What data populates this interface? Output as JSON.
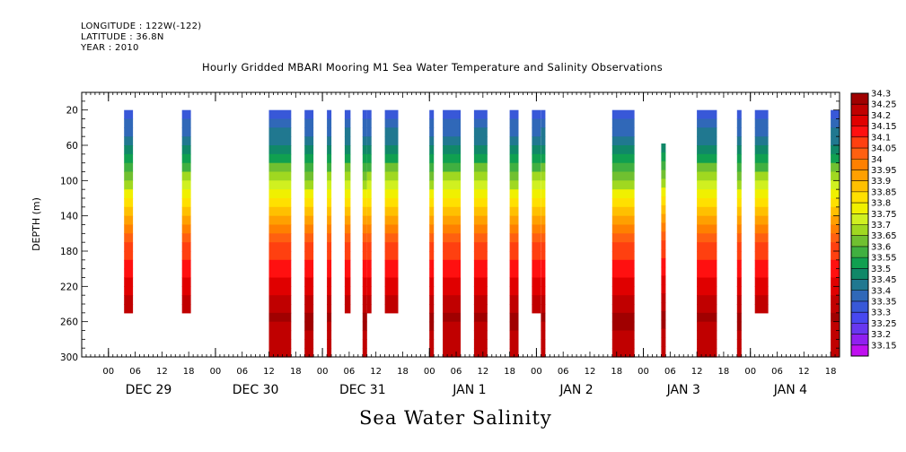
{
  "header": {
    "longitude": "LONGITUDE : 122W(-122)",
    "latitude": "LATITUDE : 36.8N",
    "year": "YEAR : 2010"
  },
  "chart_title": "Hourly Gridded MBARI Mooring M1 Sea Water Temperature and Salinity Observations",
  "variable_title": "Sea Water Salinity",
  "chart_data": {
    "type": "heatmap",
    "title": "Hourly Gridded MBARI Mooring M1 Sea Water Temperature and Salinity Observations",
    "variable": "Sea Water Salinity",
    "xlabel": "",
    "ylabel": "DEPTH (m)",
    "y_ticks": [
      20,
      60,
      100,
      140,
      180,
      220,
      260,
      300
    ],
    "ylim": [
      300,
      0
    ],
    "x_hour_tick_labels": [
      "00",
      "06",
      "12",
      "18",
      "00",
      "06",
      "12",
      "18",
      "00",
      "06",
      "12",
      "18",
      "00",
      "06",
      "12",
      "18",
      "00",
      "06",
      "12",
      "18",
      "00",
      "06",
      "12",
      "18",
      "00",
      "06",
      "12",
      "18"
    ],
    "x_day_labels": [
      "DEC 29",
      "DEC 30",
      "DEC 31",
      "JAN  1",
      "JAN  2",
      "JAN  3",
      "JAN  4"
    ],
    "x_range_hours": [
      -6,
      164
    ],
    "colorbar": {
      "levels": [
        34.3,
        34.25,
        34.2,
        34.15,
        34.1,
        34.05,
        34,
        33.95,
        33.9,
        33.85,
        33.8,
        33.75,
        33.7,
        33.65,
        33.6,
        33.55,
        33.5,
        33.45,
        33.4,
        33.35,
        33.3,
        33.25,
        33.2,
        33.15
      ],
      "colors": [
        "#a00000",
        "#c00000",
        "#e00000",
        "#ff1010",
        "#ff4010",
        "#ff6010",
        "#ff8000",
        "#ffa000",
        "#ffc000",
        "#ffe000",
        "#f0f000",
        "#d0f020",
        "#a0d820",
        "#70c030",
        "#40b040",
        "#10a050",
        "#108868",
        "#207890",
        "#3068b8",
        "#3858d8",
        "#4848f0",
        "#6838f0",
        "#9020f0",
        "#c010f0"
      ]
    },
    "series": [
      {
        "x_start": 3.5,
        "x_end": 5.5,
        "depth_top": 20,
        "depth_bottom": 250
      },
      {
        "x_start": 16.5,
        "x_end": 18.5,
        "depth_top": 20,
        "depth_bottom": 250
      },
      {
        "x_start": 36,
        "x_end": 41,
        "depth_top": 20,
        "depth_bottom": 300
      },
      {
        "x_start": 44,
        "x_end": 46,
        "depth_top": 20,
        "depth_bottom": 300
      },
      {
        "x_start": 49,
        "x_end": 50,
        "depth_top": 20,
        "depth_bottom": 300
      },
      {
        "x_start": 53,
        "x_end": 54.3,
        "depth_top": 20,
        "depth_bottom": 250
      },
      {
        "x_start": 57,
        "x_end": 58,
        "depth_top": 20,
        "depth_bottom": 300
      },
      {
        "x_start": 58,
        "x_end": 59,
        "depth_top": 20,
        "depth_bottom": 250
      },
      {
        "x_start": 62,
        "x_end": 65,
        "depth_top": 20,
        "depth_bottom": 250
      },
      {
        "x_start": 72,
        "x_end": 73,
        "depth_top": 20,
        "depth_bottom": 300
      },
      {
        "x_start": 75,
        "x_end": 79,
        "depth_top": 20,
        "depth_bottom": 300
      },
      {
        "x_start": 82,
        "x_end": 85,
        "depth_top": 20,
        "depth_bottom": 300
      },
      {
        "x_start": 90,
        "x_end": 92,
        "depth_top": 20,
        "depth_bottom": 300
      },
      {
        "x_start": 95,
        "x_end": 97,
        "depth_top": 20,
        "depth_bottom": 250
      },
      {
        "x_start": 97,
        "x_end": 98,
        "depth_top": 20,
        "depth_bottom": 300
      },
      {
        "x_start": 113,
        "x_end": 118,
        "depth_top": 20,
        "depth_bottom": 300
      },
      {
        "x_start": 124,
        "x_end": 125,
        "depth_top": 58,
        "depth_bottom": 300
      },
      {
        "x_start": 132,
        "x_end": 136.5,
        "depth_top": 20,
        "depth_bottom": 300
      },
      {
        "x_start": 141,
        "x_end": 142,
        "depth_top": 20,
        "depth_bottom": 300
      },
      {
        "x_start": 145,
        "x_end": 148,
        "depth_top": 20,
        "depth_bottom": 250
      },
      {
        "x_start": 162,
        "x_end": 164,
        "depth_top": 20,
        "depth_bottom": 300
      }
    ],
    "salinity_profile": [
      {
        "depth": 20,
        "salinity": 33.32
      },
      {
        "depth": 40,
        "salinity": 33.36
      },
      {
        "depth": 60,
        "salinity": 33.45
      },
      {
        "depth": 80,
        "salinity": 33.55
      },
      {
        "depth": 100,
        "salinity": 33.67
      },
      {
        "depth": 120,
        "salinity": 33.78
      },
      {
        "depth": 140,
        "salinity": 33.9
      },
      {
        "depth": 160,
        "salinity": 34.0
      },
      {
        "depth": 180,
        "salinity": 34.08
      },
      {
        "depth": 200,
        "salinity": 34.12
      },
      {
        "depth": 220,
        "salinity": 34.17
      },
      {
        "depth": 240,
        "salinity": 34.22
      },
      {
        "depth": 260,
        "salinity": 34.26
      },
      {
        "depth": 280,
        "salinity": 34.22
      },
      {
        "depth": 300,
        "salinity": 34.2
      }
    ]
  }
}
